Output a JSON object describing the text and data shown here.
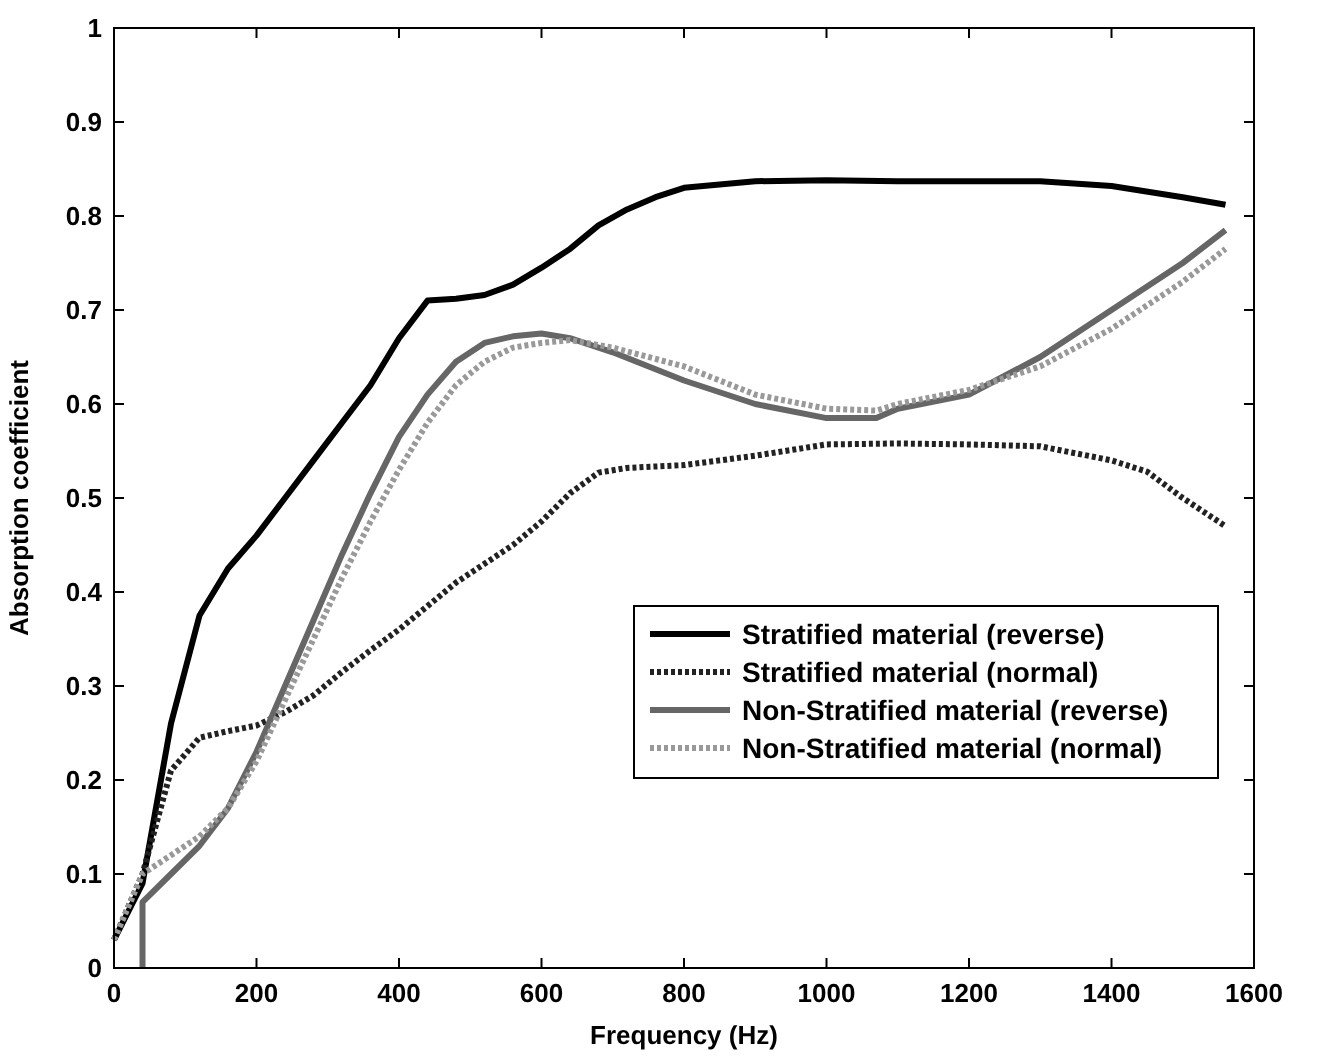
{
  "chart_data": {
    "type": "line",
    "xlabel": "Frequency (Hz)",
    "ylabel": "Absorption coefficient",
    "xlim": [
      0,
      1600
    ],
    "ylim": [
      0,
      1
    ],
    "xticks": [
      0,
      200,
      400,
      600,
      800,
      1000,
      1200,
      1400,
      1600
    ],
    "yticks": [
      0,
      0.1,
      0.2,
      0.3,
      0.4,
      0.5,
      0.6,
      0.7,
      0.8,
      0.9,
      1
    ],
    "grid": false,
    "legend": "bottom right",
    "series": [
      {
        "name": "Stratified material (reverse)",
        "color": "#000000",
        "line_style": "solid",
        "x": [
          0,
          40,
          80,
          120,
          160,
          200,
          240,
          280,
          320,
          360,
          400,
          440,
          480,
          520,
          560,
          600,
          640,
          680,
          720,
          760,
          800,
          900,
          1000,
          1100,
          1200,
          1300,
          1400,
          1500,
          1560
        ],
        "values": [
          0.03,
          0.09,
          0.26,
          0.375,
          0.425,
          0.46,
          0.5,
          0.54,
          0.58,
          0.62,
          0.67,
          0.71,
          0.712,
          0.716,
          0.727,
          0.745,
          0.765,
          0.79,
          0.807,
          0.82,
          0.83,
          0.837,
          0.838,
          0.837,
          0.837,
          0.837,
          0.832,
          0.82,
          0.812
        ]
      },
      {
        "name": "Stratified material (normal)",
        "color": "#222222",
        "line_style": "dotted",
        "x": [
          0,
          40,
          80,
          120,
          160,
          200,
          240,
          280,
          320,
          360,
          400,
          440,
          480,
          520,
          560,
          600,
          640,
          680,
          720,
          800,
          900,
          1000,
          1100,
          1200,
          1300,
          1400,
          1450,
          1500,
          1560
        ],
        "values": [
          0.03,
          0.1,
          0.21,
          0.245,
          0.252,
          0.258,
          0.272,
          0.29,
          0.315,
          0.338,
          0.36,
          0.385,
          0.41,
          0.43,
          0.45,
          0.475,
          0.505,
          0.527,
          0.532,
          0.535,
          0.545,
          0.557,
          0.558,
          0.557,
          0.555,
          0.54,
          0.528,
          0.5,
          0.47
        ]
      },
      {
        "name": "Non-Stratified material (reverse)",
        "color": "#666666",
        "line_style": "solid",
        "x": [
          40,
          40,
          80,
          120,
          160,
          200,
          240,
          280,
          320,
          360,
          400,
          440,
          480,
          520,
          560,
          600,
          640,
          700,
          800,
          900,
          1000,
          1070,
          1100,
          1200,
          1300,
          1400,
          1500,
          1560
        ],
        "values": [
          0,
          0.07,
          0.1,
          0.13,
          0.17,
          0.23,
          0.3,
          0.37,
          0.44,
          0.505,
          0.565,
          0.61,
          0.645,
          0.665,
          0.672,
          0.675,
          0.67,
          0.655,
          0.625,
          0.6,
          0.585,
          0.585,
          0.595,
          0.61,
          0.65,
          0.7,
          0.75,
          0.785
        ]
      },
      {
        "name": "Non-Stratified material (normal)",
        "color": "#999999",
        "line_style": "dotted",
        "x": [
          0,
          40,
          80,
          120,
          160,
          200,
          240,
          280,
          320,
          360,
          400,
          440,
          480,
          520,
          560,
          600,
          640,
          700,
          800,
          900,
          1000,
          1070,
          1100,
          1200,
          1300,
          1400,
          1500,
          1560
        ],
        "values": [
          0.03,
          0.1,
          0.12,
          0.14,
          0.17,
          0.22,
          0.285,
          0.35,
          0.415,
          0.475,
          0.53,
          0.58,
          0.62,
          0.645,
          0.66,
          0.665,
          0.668,
          0.66,
          0.64,
          0.61,
          0.595,
          0.593,
          0.6,
          0.615,
          0.64,
          0.68,
          0.73,
          0.765
        ]
      }
    ]
  }
}
